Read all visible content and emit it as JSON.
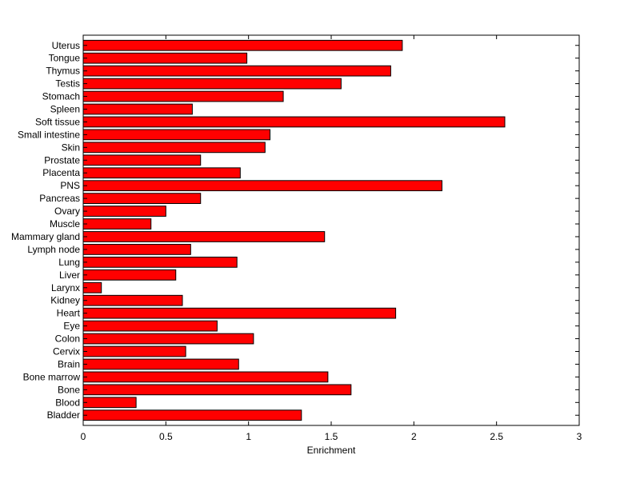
{
  "chart_data": {
    "type": "bar",
    "orientation": "horizontal",
    "xlabel": "Enrichment",
    "ylabel": "",
    "title": "",
    "xlim": [
      0,
      3
    ],
    "xticks": [
      0,
      0.5,
      1,
      1.5,
      2,
      2.5,
      3
    ],
    "xtick_labels": [
      "0",
      "0.5",
      "1",
      "1.5",
      "2",
      "2.5",
      "3"
    ],
    "grid": false,
    "bar_color": "#ff0000",
    "bar_edge_color": "#000000",
    "categories": [
      "Uterus",
      "Tongue",
      "Thymus",
      "Testis",
      "Stomach",
      "Spleen",
      "Soft tissue",
      "Small intestine",
      "Skin",
      "Prostate",
      "Placenta",
      "PNS",
      "Pancreas",
      "Ovary",
      "Muscle",
      "Mammary gland",
      "Lymph node",
      "Lung",
      "Liver",
      "Larynx",
      "Kidney",
      "Heart",
      "Eye",
      "Colon",
      "Cervix",
      "Brain",
      "Bone marrow",
      "Bone",
      "Blood",
      "Bladder"
    ],
    "values": [
      1.93,
      0.99,
      1.86,
      1.56,
      1.21,
      0.66,
      2.55,
      1.13,
      1.1,
      0.71,
      0.95,
      2.17,
      0.71,
      0.5,
      0.41,
      1.46,
      0.65,
      0.93,
      0.56,
      0.11,
      0.6,
      1.89,
      0.81,
      1.03,
      0.62,
      0.94,
      1.48,
      1.62,
      0.32,
      1.32
    ]
  }
}
